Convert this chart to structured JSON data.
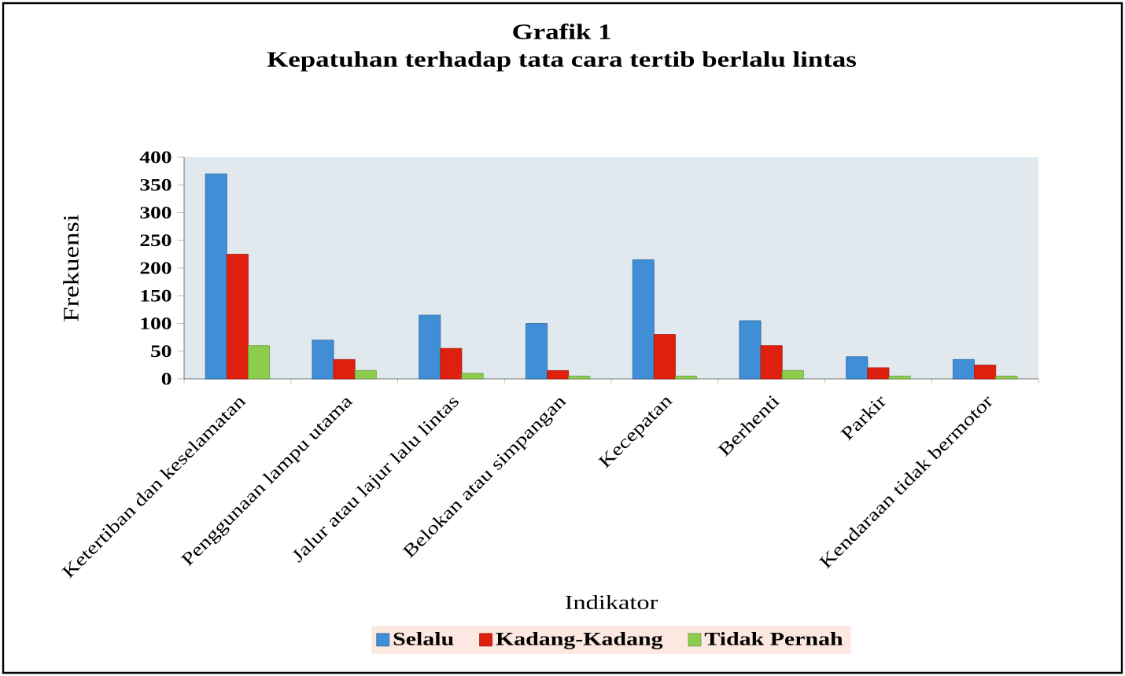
{
  "chart_data": {
    "type": "bar",
    "title": "Grafik 1",
    "subtitle": "Kepatuhan terhadap tata cara tertib berlalu lintas",
    "xlabel": "Indikator",
    "ylabel": "Frekuensi",
    "categories": [
      "Ketertiban dan keselamatan",
      "Penggunaan lampu utama",
      "Jalur atau lajur lalu lintas",
      "Belokan atau simpangan",
      "Kecepatan",
      "Berhenti",
      "Parkir",
      "Kendaraan tidak bermotor"
    ],
    "series": [
      {
        "name": "Selalu",
        "color": "#3f8ed6",
        "values": [
          370,
          70,
          115,
          100,
          215,
          105,
          40,
          35
        ]
      },
      {
        "name": "Kadang-Kadang",
        "color": "#e0200e",
        "values": [
          225,
          35,
          55,
          15,
          80,
          60,
          20,
          25
        ]
      },
      {
        "name": "Tidak Pernah",
        "color": "#8ccc4e",
        "values": [
          60,
          15,
          10,
          5,
          5,
          15,
          5,
          5
        ]
      }
    ],
    "ylim": [
      0,
      400
    ],
    "yticks": [
      0,
      50,
      100,
      150,
      200,
      250,
      300,
      350,
      400
    ],
    "legend": "bottom"
  }
}
